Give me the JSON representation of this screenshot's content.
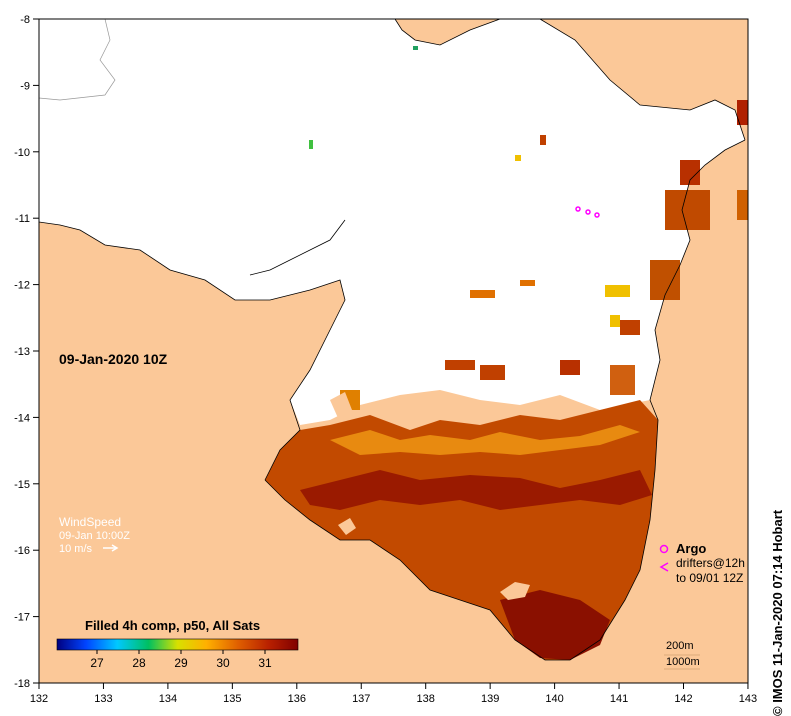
{
  "map": {
    "date_label": "09-Jan-2020 10Z",
    "x_ticks": [
      "132",
      "133",
      "134",
      "135",
      "136",
      "137",
      "138",
      "139",
      "140",
      "141",
      "142",
      "143"
    ],
    "y_ticks": [
      "-8",
      "-9",
      "-10",
      "-11",
      "-12",
      "-13",
      "-14",
      "-15",
      "-16",
      "-17",
      "-18"
    ],
    "wind": {
      "title": "WindSpeed",
      "time": "09-Jan 10:00Z",
      "scale": "10 m/s"
    },
    "colorbar": {
      "title": "Filled 4h comp, p50, All Sats",
      "ticks": [
        "27",
        "28",
        "29",
        "30",
        "31"
      ],
      "colors": [
        "#000080",
        "#0044ff",
        "#00c8ff",
        "#00c060",
        "#d8e000",
        "#ffb000",
        "#e06000",
        "#b82000",
        "#800000"
      ]
    },
    "argo": {
      "label": "Argo",
      "drifters_line1": "drifters@12h",
      "drifters_line2": "to 09/01 12Z"
    },
    "depth": {
      "c1": "200m",
      "c2": "1000m"
    },
    "copyright": "© IMOS 11-Jan-2020 07:14 Hobart",
    "colors": {
      "land": "#fbc898",
      "ocean": "#ffffff",
      "argo": "#ff00ff"
    }
  }
}
